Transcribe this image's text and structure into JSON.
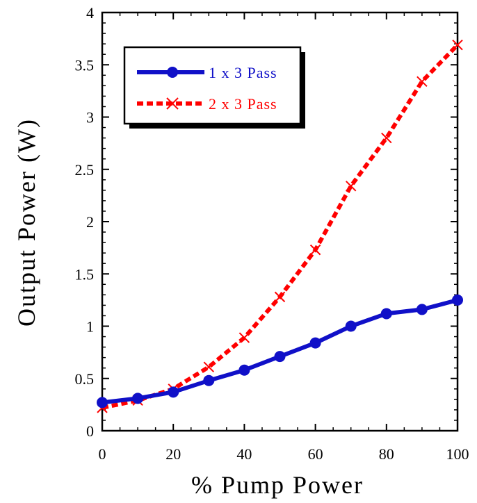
{
  "chart_data": {
    "type": "line",
    "title": "",
    "xlabel": "% Pump Power",
    "ylabel": "Output Power (W)",
    "xlim": [
      0,
      100
    ],
    "ylim": [
      0,
      4
    ],
    "x_ticks": [
      "0",
      "20",
      "40",
      "60",
      "80",
      "100"
    ],
    "y_ticks": [
      "0",
      "0.5",
      "1",
      "1.5",
      "2",
      "2.5",
      "3",
      "3.5",
      "4"
    ],
    "grid": false,
    "legend_position": "top-left",
    "series": [
      {
        "name": "1 x 3 Pass",
        "color": "#1010c8",
        "line_style": "solid",
        "marker": "circle",
        "x": [
          0,
          10,
          20,
          30,
          40,
          50,
          60,
          70,
          80,
          90,
          100
        ],
        "values": [
          0.27,
          0.31,
          0.37,
          0.48,
          0.58,
          0.71,
          0.84,
          1.0,
          1.12,
          1.16,
          1.25
        ]
      },
      {
        "name": "2 x 3 Pass",
        "color": "#ff0000",
        "line_style": "dashed",
        "marker": "x",
        "x": [
          0,
          10,
          20,
          30,
          40,
          50,
          60,
          70,
          80,
          90,
          100
        ],
        "values": [
          0.22,
          0.29,
          0.4,
          0.61,
          0.89,
          1.28,
          1.73,
          2.34,
          2.8,
          3.34,
          3.69
        ]
      }
    ]
  }
}
